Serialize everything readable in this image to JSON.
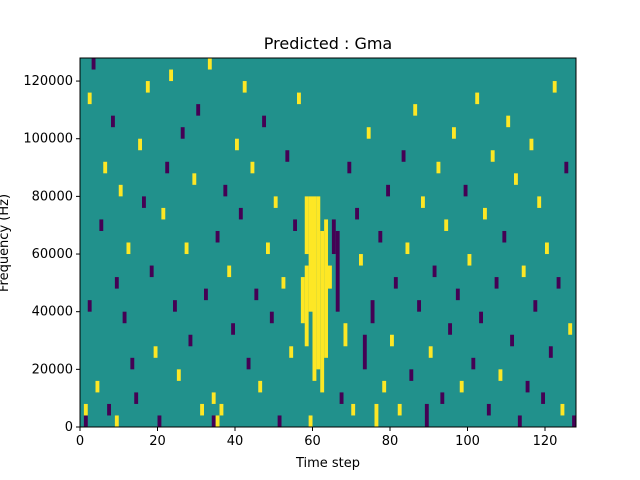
{
  "chart_data": {
    "type": "heatmap",
    "title": "Predicted : Gma",
    "xlabel": "Time step",
    "ylabel": "Frequency (Hz)",
    "xlim": [
      0,
      128
    ],
    "ylim": [
      0,
      128000
    ],
    "x_ticks": [
      0,
      20,
      40,
      60,
      80,
      100,
      120
    ],
    "y_ticks": [
      0,
      20000,
      40000,
      60000,
      80000,
      100000,
      120000
    ],
    "grid": false,
    "n_time_steps": 128,
    "n_freq_bins": 64,
    "colors": {
      "background": "#21918c",
      "low": "#440154",
      "high": "#fde725"
    },
    "notes": "Sparse binary cells on teal background; dense yellow column around time steps 58-64",
    "cells": [
      [
        1,
        0,
        2,
        "low"
      ],
      [
        1,
        2,
        2,
        "high"
      ],
      [
        2,
        56,
        2,
        "high"
      ],
      [
        3,
        62,
        2,
        "low"
      ],
      [
        2,
        20,
        2,
        "low"
      ],
      [
        4,
        6,
        2,
        "high"
      ],
      [
        5,
        34,
        2,
        "low"
      ],
      [
        6,
        44,
        2,
        "high"
      ],
      [
        7,
        2,
        2,
        "low"
      ],
      [
        8,
        52,
        2,
        "low"
      ],
      [
        9,
        0,
        2,
        "high"
      ],
      [
        9,
        24,
        2,
        "low"
      ],
      [
        10,
        40,
        2,
        "high"
      ],
      [
        11,
        18,
        2,
        "low"
      ],
      [
        12,
        30,
        2,
        "high"
      ],
      [
        13,
        10,
        2,
        "low"
      ],
      [
        14,
        4,
        2,
        "low"
      ],
      [
        15,
        48,
        2,
        "high"
      ],
      [
        16,
        38,
        2,
        "low"
      ],
      [
        17,
        58,
        2,
        "high"
      ],
      [
        18,
        26,
        2,
        "low"
      ],
      [
        19,
        12,
        2,
        "high"
      ],
      [
        20,
        0,
        2,
        "low"
      ],
      [
        21,
        36,
        2,
        "high"
      ],
      [
        22,
        44,
        2,
        "low"
      ],
      [
        23,
        60,
        2,
        "high"
      ],
      [
        24,
        20,
        2,
        "low"
      ],
      [
        25,
        8,
        2,
        "high"
      ],
      [
        26,
        50,
        2,
        "low"
      ],
      [
        27,
        30,
        2,
        "high"
      ],
      [
        28,
        14,
        2,
        "low"
      ],
      [
        29,
        42,
        2,
        "high"
      ],
      [
        30,
        54,
        2,
        "low"
      ],
      [
        31,
        2,
        2,
        "high"
      ],
      [
        32,
        22,
        2,
        "low"
      ],
      [
        33,
        62,
        2,
        "high"
      ],
      [
        34,
        0,
        2,
        "low"
      ],
      [
        34,
        4,
        2,
        "high"
      ],
      [
        35,
        0,
        2,
        "high"
      ],
      [
        35,
        32,
        2,
        "low"
      ],
      [
        36,
        2,
        2,
        "high"
      ],
      [
        37,
        40,
        2,
        "low"
      ],
      [
        38,
        26,
        2,
        "high"
      ],
      [
        39,
        16,
        2,
        "low"
      ],
      [
        40,
        48,
        2,
        "high"
      ],
      [
        41,
        36,
        2,
        "low"
      ],
      [
        42,
        58,
        2,
        "high"
      ],
      [
        43,
        10,
        2,
        "low"
      ],
      [
        44,
        44,
        2,
        "high"
      ],
      [
        45,
        22,
        2,
        "low"
      ],
      [
        46,
        6,
        2,
        "high"
      ],
      [
        47,
        52,
        2,
        "low"
      ],
      [
        48,
        30,
        2,
        "high"
      ],
      [
        49,
        18,
        2,
        "low"
      ],
      [
        50,
        38,
        2,
        "high"
      ],
      [
        51,
        0,
        2,
        "low"
      ],
      [
        52,
        24,
        2,
        "high"
      ],
      [
        53,
        46,
        2,
        "low"
      ],
      [
        54,
        12,
        2,
        "high"
      ],
      [
        55,
        34,
        2,
        "low"
      ],
      [
        56,
        56,
        2,
        "high"
      ],
      [
        57,
        18,
        8,
        "high"
      ],
      [
        58,
        14,
        14,
        "high"
      ],
      [
        58,
        30,
        10,
        "high"
      ],
      [
        59,
        0,
        2,
        "high"
      ],
      [
        59,
        20,
        20,
        "high"
      ],
      [
        60,
        8,
        32,
        "high"
      ],
      [
        61,
        10,
        30,
        "high"
      ],
      [
        62,
        6,
        28,
        "high"
      ],
      [
        63,
        12,
        24,
        "high"
      ],
      [
        64,
        24,
        4,
        "high"
      ],
      [
        65,
        30,
        6,
        "low"
      ],
      [
        66,
        20,
        14,
        "low"
      ],
      [
        67,
        4,
        2,
        "low"
      ],
      [
        68,
        14,
        4,
        "high"
      ],
      [
        69,
        44,
        2,
        "low"
      ],
      [
        70,
        2,
        2,
        "high"
      ],
      [
        71,
        36,
        2,
        "low"
      ],
      [
        72,
        28,
        2,
        "high"
      ],
      [
        73,
        10,
        6,
        "low"
      ],
      [
        74,
        50,
        2,
        "high"
      ],
      [
        75,
        18,
        4,
        "low"
      ],
      [
        76,
        0,
        4,
        "high"
      ],
      [
        77,
        32,
        2,
        "low"
      ],
      [
        78,
        6,
        2,
        "high"
      ],
      [
        79,
        40,
        2,
        "low"
      ],
      [
        80,
        14,
        2,
        "high"
      ],
      [
        81,
        24,
        2,
        "low"
      ],
      [
        82,
        2,
        2,
        "high"
      ],
      [
        83,
        46,
        2,
        "low"
      ],
      [
        84,
        30,
        2,
        "high"
      ],
      [
        85,
        8,
        2,
        "low"
      ],
      [
        86,
        54,
        2,
        "high"
      ],
      [
        87,
        20,
        2,
        "low"
      ],
      [
        88,
        38,
        2,
        "high"
      ],
      [
        89,
        0,
        4,
        "low"
      ],
      [
        90,
        12,
        2,
        "high"
      ],
      [
        91,
        26,
        2,
        "low"
      ],
      [
        92,
        44,
        2,
        "high"
      ],
      [
        93,
        4,
        2,
        "low"
      ],
      [
        94,
        34,
        2,
        "high"
      ],
      [
        95,
        16,
        2,
        "low"
      ],
      [
        96,
        50,
        2,
        "high"
      ],
      [
        97,
        22,
        2,
        "low"
      ],
      [
        98,
        6,
        2,
        "high"
      ],
      [
        99,
        40,
        2,
        "low"
      ],
      [
        100,
        28,
        2,
        "high"
      ],
      [
        101,
        10,
        2,
        "low"
      ],
      [
        102,
        56,
        2,
        "high"
      ],
      [
        103,
        18,
        2,
        "low"
      ],
      [
        104,
        36,
        2,
        "high"
      ],
      [
        105,
        2,
        2,
        "low"
      ],
      [
        106,
        46,
        2,
        "high"
      ],
      [
        107,
        24,
        2,
        "low"
      ],
      [
        108,
        8,
        2,
        "high"
      ],
      [
        109,
        32,
        2,
        "low"
      ],
      [
        110,
        52,
        2,
        "high"
      ],
      [
        111,
        14,
        2,
        "low"
      ],
      [
        112,
        42,
        2,
        "high"
      ],
      [
        113,
        0,
        2,
        "low"
      ],
      [
        114,
        26,
        2,
        "high"
      ],
      [
        115,
        6,
        2,
        "low"
      ],
      [
        116,
        48,
        2,
        "high"
      ],
      [
        117,
        20,
        2,
        "low"
      ],
      [
        118,
        38,
        2,
        "high"
      ],
      [
        119,
        4,
        2,
        "low"
      ],
      [
        120,
        30,
        2,
        "high"
      ],
      [
        121,
        12,
        2,
        "low"
      ],
      [
        122,
        58,
        2,
        "high"
      ],
      [
        123,
        24,
        2,
        "low"
      ],
      [
        124,
        2,
        2,
        "high"
      ],
      [
        125,
        44,
        2,
        "low"
      ],
      [
        126,
        16,
        2,
        "high"
      ],
      [
        127,
        0,
        2,
        "low"
      ]
    ]
  }
}
